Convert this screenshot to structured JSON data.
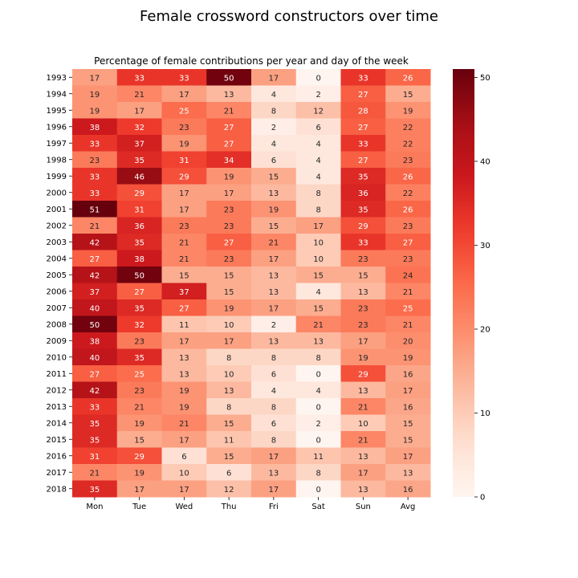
{
  "figure_title": "Female crossword constructors over time",
  "chart_data": {
    "type": "heatmap",
    "title": "Percentage of female contributions per year and day of the week",
    "x_labels": [
      "Mon",
      "Tue",
      "Wed",
      "Thu",
      "Fri",
      "Sat",
      "Sun",
      "Avg"
    ],
    "y_labels": [
      "1993",
      "1994",
      "1995",
      "1996",
      "1997",
      "1998",
      "1999",
      "2000",
      "2001",
      "2002",
      "2003",
      "2004",
      "2005",
      "2006",
      "2007",
      "2008",
      "2009",
      "2010",
      "2011",
      "2012",
      "2013",
      "2014",
      "2015",
      "2016",
      "2017",
      "2018"
    ],
    "values": [
      [
        17,
        33,
        33,
        50,
        17,
        0,
        33,
        26
      ],
      [
        19,
        21,
        17,
        13,
        4,
        2,
        27,
        15
      ],
      [
        19,
        17,
        25,
        21,
        8,
        12,
        28,
        19
      ],
      [
        38,
        32,
        23,
        27,
        2,
        6,
        27,
        22
      ],
      [
        33,
        37,
        19,
        27,
        4,
        4,
        33,
        22
      ],
      [
        23,
        35,
        31,
        34,
        6,
        4,
        27,
        23
      ],
      [
        33,
        46,
        29,
        19,
        15,
        4,
        35,
        26
      ],
      [
        33,
        29,
        17,
        17,
        13,
        8,
        36,
        22
      ],
      [
        51,
        31,
        17,
        23,
        19,
        8,
        35,
        26
      ],
      [
        21,
        36,
        23,
        23,
        15,
        17,
        29,
        23
      ],
      [
        42,
        35,
        21,
        27,
        21,
        10,
        33,
        27
      ],
      [
        27,
        38,
        21,
        23,
        17,
        10,
        23,
        23
      ],
      [
        42,
        50,
        15,
        15,
        13,
        15,
        15,
        24
      ],
      [
        37,
        27,
        37,
        15,
        13,
        4,
        13,
        21
      ],
      [
        40,
        35,
        27,
        19,
        17,
        15,
        23,
        25
      ],
      [
        50,
        32,
        11,
        10,
        2,
        21,
        23,
        21
      ],
      [
        38,
        23,
        17,
        17,
        13,
        13,
        17,
        20
      ],
      [
        40,
        35,
        13,
        8,
        8,
        8,
        19,
        19
      ],
      [
        27,
        25,
        13,
        10,
        6,
        0,
        29,
        16
      ],
      [
        42,
        23,
        19,
        13,
        4,
        4,
        13,
        17
      ],
      [
        33,
        21,
        19,
        8,
        8,
        0,
        21,
        16
      ],
      [
        35,
        19,
        21,
        15,
        6,
        2,
        10,
        15
      ],
      [
        35,
        15,
        17,
        11,
        8,
        0,
        21,
        15
      ],
      [
        31,
        29,
        6,
        15,
        17,
        11,
        13,
        17
      ],
      [
        21,
        19,
        10,
        6,
        13,
        8,
        17,
        13
      ],
      [
        35,
        17,
        17,
        12,
        17,
        0,
        13,
        16
      ]
    ],
    "vmin": 0,
    "vmax": 51,
    "colormap": "Reds",
    "colorbar_ticks": [
      0,
      10,
      20,
      30,
      40,
      50
    ]
  }
}
